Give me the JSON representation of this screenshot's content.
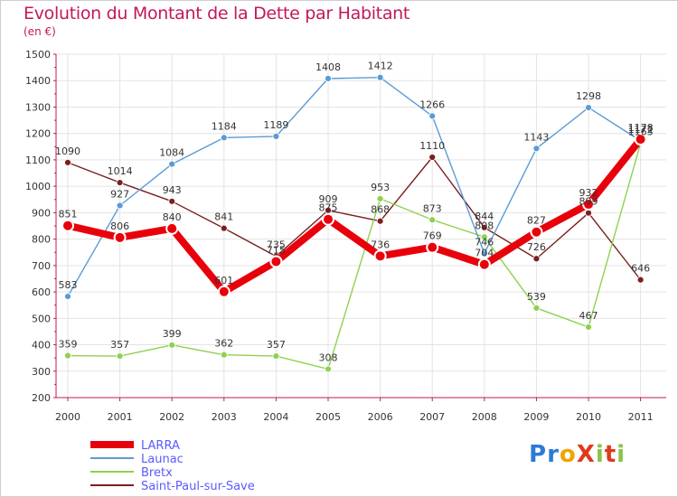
{
  "chart_data": {
    "type": "line",
    "title": "Evolution du Montant de la Dette par Habitant",
    "subtitle": "(en €)",
    "categories": [
      "2000",
      "2001",
      "2002",
      "2003",
      "2004",
      "2005",
      "2006",
      "2007",
      "2008",
      "2009",
      "2010",
      "2011"
    ],
    "ylim": [
      200,
      1500
    ],
    "yticks": [
      200,
      300,
      400,
      500,
      600,
      700,
      800,
      900,
      1000,
      1100,
      1200,
      1300,
      1400,
      1500
    ],
    "grid": true,
    "legend_position": "bottom-left",
    "series": [
      {
        "name": "LARRA",
        "color": "#e8000b",
        "width": "thick",
        "values": [
          851,
          806,
          840,
          601,
          715,
          875,
          736,
          769,
          704,
          827,
          932,
          1178
        ],
        "labels": [
          "851",
          "806",
          "840",
          "601",
          "715",
          "875",
          "736",
          "769",
          "704",
          "827",
          "932",
          "1178"
        ]
      },
      {
        "name": "Launac",
        "color": "#5b9bd5",
        "width": "thin",
        "values": [
          583,
          927,
          1084,
          1184,
          1189,
          1408,
          1412,
          1266,
          746,
          1143,
          1298,
          1172
        ],
        "labels": [
          "583",
          "927",
          "1084",
          "1184",
          "1189",
          "1408",
          "1412",
          "1266",
          "746",
          "1143",
          "1298",
          "1172"
        ]
      },
      {
        "name": "Bretx",
        "color": "#8fd14f",
        "width": "thin",
        "values": [
          359,
          357,
          399,
          362,
          357,
          308,
          953,
          873,
          808,
          539,
          467,
          1163
        ],
        "labels": [
          "359",
          "357",
          "399",
          "362",
          "357",
          "308",
          "953",
          "873",
          "808",
          "539",
          "467",
          "1163"
        ]
      },
      {
        "name": "Saint-Paul-sur-Save",
        "color": "#7a1f1f",
        "width": "thin",
        "values": [
          1090,
          1014,
          943,
          841,
          735,
          909,
          868,
          1110,
          844,
          726,
          899,
          646
        ],
        "labels": [
          "1090",
          "1014",
          "943",
          "841",
          "735",
          "909",
          "868",
          "1110",
          "844",
          "726",
          "899",
          "646"
        ]
      }
    ]
  },
  "logo": {
    "text": "ProXiti"
  }
}
